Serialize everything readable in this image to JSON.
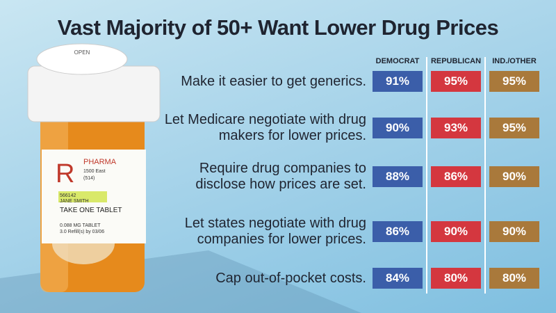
{
  "chart_data": {
    "type": "table",
    "title": "Vast Majority of 50+ Want Lower Drug Prices",
    "categories": [
      "Make it easier to get generics.",
      "Let Medicare negotiate with drug makers for lower prices.",
      "Require drug companies to disclose how prices are set.",
      "Let states negotiate with drug companies for lower prices.",
      "Cap out-of-pocket costs."
    ],
    "series": [
      {
        "name": "DEMOCRAT",
        "color": "#3b5ea9",
        "values": [
          91,
          90,
          88,
          86,
          84
        ],
        "value_labels": [
          "91%",
          "90%",
          "88%",
          "86%",
          "84%"
        ]
      },
      {
        "name": "REPUBLICAN",
        "color": "#d4373f",
        "values": [
          95,
          93,
          86,
          90,
          80
        ],
        "value_labels": [
          "95%",
          "93%",
          "86%",
          "90%",
          "80%"
        ]
      },
      {
        "name": "IND./OTHER",
        "color": "#a9793b",
        "values": [
          95,
          95,
          90,
          90,
          80
        ],
        "value_labels": [
          "95%",
          "95%",
          "90%",
          "90%",
          "80%"
        ]
      }
    ]
  },
  "bottle_label": [
    "OPEN",
    "R",
    "PHARMA",
    "1500 East",
    "(514)",
    "566142",
    "JANE SMITH",
    "TAKE ONE TABLET",
    "0.088 MG TABLET",
    "3.0 Refill(s) by 03/06"
  ]
}
